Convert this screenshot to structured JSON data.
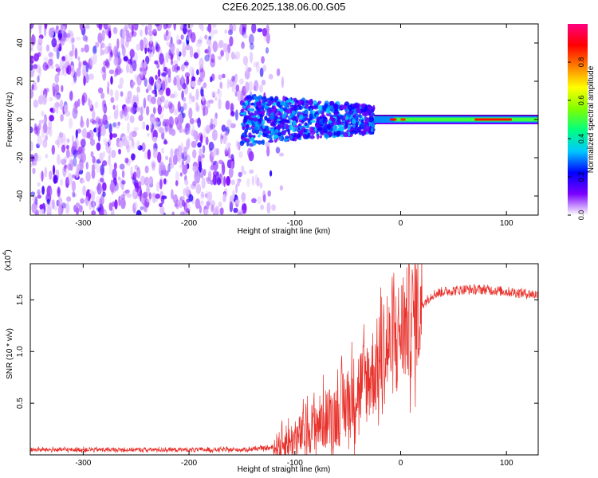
{
  "title": "C2E6.2025.138.06.00.G05",
  "chart_data": [
    {
      "type": "heatmap",
      "xlabel": "Height of straight line (km)",
      "ylabel": "Frequency (Hz)",
      "xlim": [
        -350,
        130
      ],
      "ylim": [
        -50,
        50
      ],
      "xticks": [
        -300,
        -200,
        -100,
        0,
        100
      ],
      "yticks": [
        -40,
        -20,
        0,
        20,
        40
      ],
      "colorbar": {
        "label": "Normalized spectral amplitude",
        "range": [
          0,
          1
        ],
        "ticks": [
          "0.0",
          "0.2",
          "0.4",
          "0.6",
          "0.8"
        ],
        "colors": [
          "#ffffff",
          "#7a00ff",
          "#0000ff",
          "#00c8ff",
          "#00ff80",
          "#80ff00",
          "#ffff00",
          "#ff8000",
          "#ff0000",
          "#ff0080"
        ]
      },
      "features": {
        "scattered_region_x": [
          -350,
          -125
        ],
        "scattered_frequency_range": [
          -50,
          50
        ],
        "narrow_band_x": [
          -150,
          130
        ],
        "narrow_band_center_hz": 0,
        "narrow_band_halfwidth_hz": [
          10,
          2
        ]
      }
    },
    {
      "type": "line",
      "xlabel": "Height of straight line (km)",
      "ylabel": "SNR (10 * v/v)",
      "y_multiplier": "(x10",
      "y_multiplier_exp": "4",
      "y_multiplier_close": ")",
      "xlim": [
        -350,
        130
      ],
      "ylim": [
        0,
        1.85
      ],
      "xticks": [
        -300,
        -200,
        -100,
        0,
        100
      ],
      "yticks": [
        "0.5",
        "1.0",
        "1.5"
      ],
      "color": "#e8302a",
      "x": [
        -350,
        -300,
        -250,
        -200,
        -150,
        -120,
        -100,
        -80,
        -60,
        -50,
        -40,
        -30,
        -20,
        -10,
        0,
        10,
        20,
        30,
        40,
        60,
        80,
        100,
        130
      ],
      "y": [
        0.05,
        0.05,
        0.05,
        0.05,
        0.05,
        0.07,
        0.15,
        0.3,
        0.4,
        0.5,
        0.65,
        0.75,
        0.9,
        1.05,
        1.2,
        1.3,
        1.45,
        1.55,
        1.58,
        1.6,
        1.6,
        1.58,
        1.55
      ]
    }
  ]
}
